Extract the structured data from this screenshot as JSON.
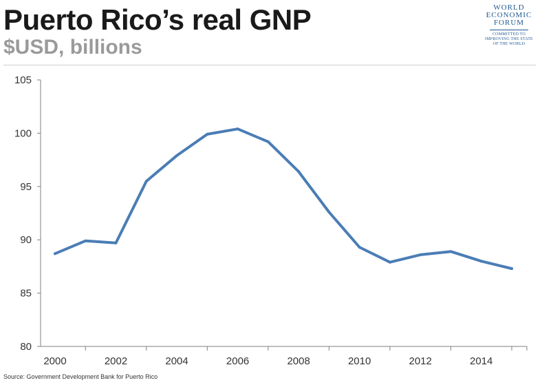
{
  "header": {
    "title": "Puerto Rico’s real GNP",
    "subtitle": "$USD, billions"
  },
  "logo": {
    "line1": "WORLD",
    "line2": "ECONOMIC",
    "line3": "FORUM",
    "tagline1": "COMMITTED TO",
    "tagline2": "IMPROVING THE STATE",
    "tagline3": "OF THE WORLD"
  },
  "source": "Source: Government Development Bank for Puerto Rico",
  "colors": {
    "line": "#4a7db5",
    "axis": "#7f7f7f",
    "text": "#333333"
  },
  "chart_data": {
    "type": "line",
    "title": "Puerto Rico’s real GNP",
    "subtitle": "$USD, billions",
    "xlabel": "",
    "ylabel": "",
    "x": [
      2000,
      2001,
      2002,
      2003,
      2004,
      2005,
      2006,
      2007,
      2008,
      2009,
      2010,
      2011,
      2012,
      2013,
      2014,
      2015
    ],
    "series": [
      {
        "values": [
          88.7,
          89.9,
          89.7,
          95.5,
          97.9,
          99.9,
          100.4,
          99.2,
          96.4,
          92.6,
          89.3,
          87.9,
          88.6,
          88.9,
          88.0,
          87.3
        ]
      }
    ],
    "xlim": [
      2000,
      2015
    ],
    "ylim": [
      80,
      105
    ],
    "yticks": [
      80,
      85,
      90,
      95,
      100,
      105
    ],
    "xtick_labels": [
      "2000",
      "2002",
      "2004",
      "2006",
      "2008",
      "2010",
      "2012",
      "2014"
    ],
    "grid": false,
    "legend": "none"
  }
}
